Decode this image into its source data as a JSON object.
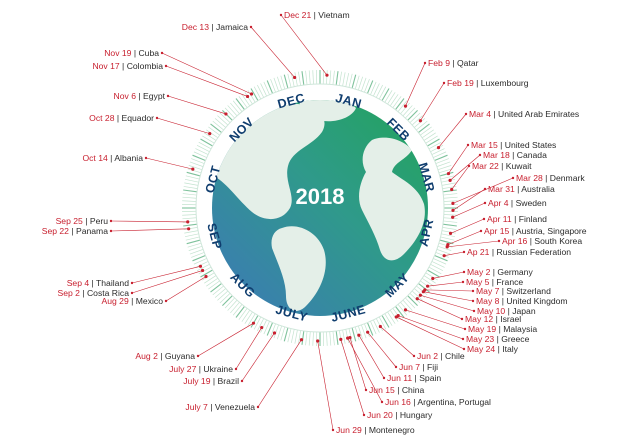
{
  "year": "2018",
  "months": [
    "JAN",
    "FEB",
    "MAR",
    "APR",
    "MAY",
    "JUNE",
    "JULY",
    "AUG",
    "SEP",
    "OCT",
    "NOV",
    "DEC"
  ],
  "events": [
    {
      "date": "Dec 21",
      "country": "Vietnam"
    },
    {
      "date": "Dec 13",
      "country": "Jamaica"
    },
    {
      "date": "Nov 19",
      "country": "Cuba"
    },
    {
      "date": "Nov 17",
      "country": "Colombia"
    },
    {
      "date": "Nov 6",
      "country": "Egypt"
    },
    {
      "date": "Oct 28",
      "country": "Equador"
    },
    {
      "date": "Oct 14",
      "country": "Albania"
    },
    {
      "date": "Sep 25",
      "country": "Peru"
    },
    {
      "date": "Sep 22",
      "country": "Panama"
    },
    {
      "date": "Sep 4",
      "country": "Thailand"
    },
    {
      "date": "Sep 2",
      "country": "Costa Rica"
    },
    {
      "date": "Aug 29",
      "country": "Mexico"
    },
    {
      "date": "Aug 2",
      "country": "Guyana"
    },
    {
      "date": "July 27",
      "country": "Ukraine"
    },
    {
      "date": "July 19",
      "country": "Brazil"
    },
    {
      "date": "July 7",
      "country": "Venezuela"
    },
    {
      "date": "Jun 29",
      "country": "Montenegro"
    },
    {
      "date": "Jun 20",
      "country": "Hungary"
    },
    {
      "date": "Jun 16",
      "country": "Argentina, Portugal"
    },
    {
      "date": "Jun 15",
      "country": "China"
    },
    {
      "date": "Jun 11",
      "country": "Spain"
    },
    {
      "date": "Jun 7",
      "country": "Fiji"
    },
    {
      "date": "Jun 2",
      "country": "Chile"
    },
    {
      "date": "May 24",
      "country": "Italy"
    },
    {
      "date": "May 23",
      "country": "Greece"
    },
    {
      "date": "May 19",
      "country": "Malaysia"
    },
    {
      "date": "May 12",
      "country": "Israel"
    },
    {
      "date": "May 10",
      "country": "Japan"
    },
    {
      "date": "May 8",
      "country": "United Kingdom"
    },
    {
      "date": "May 7",
      "country": "Switzerland"
    },
    {
      "date": "May 5",
      "country": "France"
    },
    {
      "date": "May 2",
      "country": "Germany"
    },
    {
      "date": "Ap 21",
      "country": "Russian Federation"
    },
    {
      "date": "Apr 16",
      "country": "South Korea"
    },
    {
      "date": "Apr 15",
      "country": "Austria, Singapore"
    },
    {
      "date": "Apr 11",
      "country": "Finland"
    },
    {
      "date": "Apr 4",
      "country": "Sweden"
    },
    {
      "date": "Mar 31",
      "country": "Australia"
    },
    {
      "date": "Mar 28",
      "country": "Denmark"
    },
    {
      "date": "Mar 22",
      "country": "Kuwait"
    },
    {
      "date": "Mar 18",
      "country": "Canada"
    },
    {
      "date": "Mar 15",
      "country": "United States"
    },
    {
      "date": "Mar 4",
      "country": "United Arab Emirates"
    },
    {
      "date": "Feb 19",
      "country": "Luxembourg"
    },
    {
      "date": "Feb 9",
      "country": "Qatar"
    }
  ],
  "colors": {
    "date": "#c8202f",
    "text": "#2b2b2b",
    "month": "#0f3d6e",
    "ocean_left": "#3d7fb5",
    "ocean_right": "#2aa36b",
    "land": "#e6f0e9"
  }
}
